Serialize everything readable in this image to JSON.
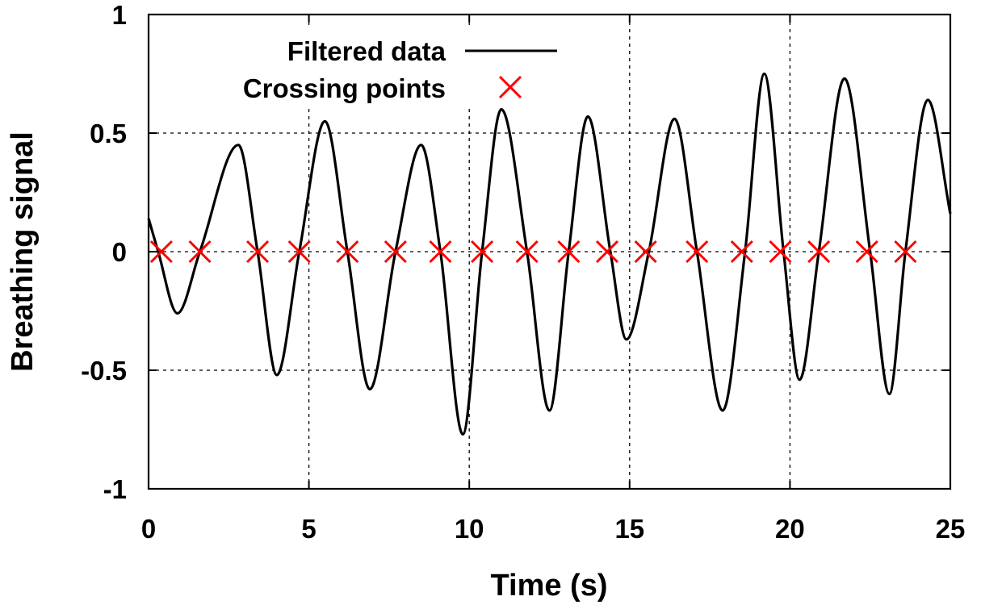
{
  "chart_data": {
    "type": "line",
    "xlabel": "Time (s)",
    "ylabel": "Breathing signal",
    "xlim": [
      0,
      25
    ],
    "ylim": [
      -1,
      1
    ],
    "x_ticks": [
      0,
      5,
      10,
      15,
      20,
      25
    ],
    "y_ticks": [
      -1,
      -0.5,
      0,
      0.5,
      1
    ],
    "x_tick_labels": [
      "0",
      "5",
      "10",
      "15",
      "20",
      "25"
    ],
    "y_tick_labels": [
      "-1",
      "-0.5",
      "0",
      "0.5",
      "1"
    ],
    "grid": true,
    "legend_position": "top-left",
    "series": [
      {
        "name": "Filtered data",
        "style": "line",
        "color": "#000000",
        "points": [
          [
            0.0,
            0.14
          ],
          [
            0.3,
            0.0
          ],
          [
            0.9,
            -0.26
          ],
          [
            1.6,
            0.0
          ],
          [
            2.8,
            0.45
          ],
          [
            3.4,
            0.0
          ],
          [
            4.0,
            -0.52
          ],
          [
            4.7,
            0.0
          ],
          [
            5.5,
            0.55
          ],
          [
            6.2,
            0.0
          ],
          [
            6.9,
            -0.58
          ],
          [
            7.7,
            0.0
          ],
          [
            8.5,
            0.45
          ],
          [
            9.1,
            0.0
          ],
          [
            9.8,
            -0.77
          ],
          [
            10.4,
            0.0
          ],
          [
            11.0,
            0.6
          ],
          [
            11.8,
            0.0
          ],
          [
            12.5,
            -0.67
          ],
          [
            13.1,
            0.0
          ],
          [
            13.7,
            0.57
          ],
          [
            14.4,
            0.0
          ],
          [
            14.9,
            -0.37
          ],
          [
            15.6,
            0.0
          ],
          [
            16.4,
            0.56
          ],
          [
            17.1,
            0.0
          ],
          [
            17.9,
            -0.67
          ],
          [
            18.6,
            0.0
          ],
          [
            19.2,
            0.75
          ],
          [
            19.8,
            0.0
          ],
          [
            20.3,
            -0.54
          ],
          [
            20.9,
            0.0
          ],
          [
            21.7,
            0.73
          ],
          [
            22.5,
            0.0
          ],
          [
            23.1,
            -0.6
          ],
          [
            23.6,
            0.0
          ],
          [
            24.3,
            0.64
          ],
          [
            25.0,
            0.16
          ]
        ]
      },
      {
        "name": "Crossing points",
        "style": "marker-x",
        "color": "#ff0000",
        "points": [
          [
            0.4,
            0
          ],
          [
            1.6,
            0
          ],
          [
            3.4,
            0
          ],
          [
            4.7,
            0
          ],
          [
            6.2,
            0
          ],
          [
            7.7,
            0
          ],
          [
            9.1,
            0
          ],
          [
            10.4,
            0
          ],
          [
            11.8,
            0
          ],
          [
            13.1,
            0
          ],
          [
            14.3,
            0
          ],
          [
            15.5,
            0
          ],
          [
            17.1,
            0
          ],
          [
            18.5,
            0
          ],
          [
            19.7,
            0
          ],
          [
            20.9,
            0
          ],
          [
            22.4,
            0
          ],
          [
            23.6,
            0
          ]
        ]
      }
    ]
  }
}
